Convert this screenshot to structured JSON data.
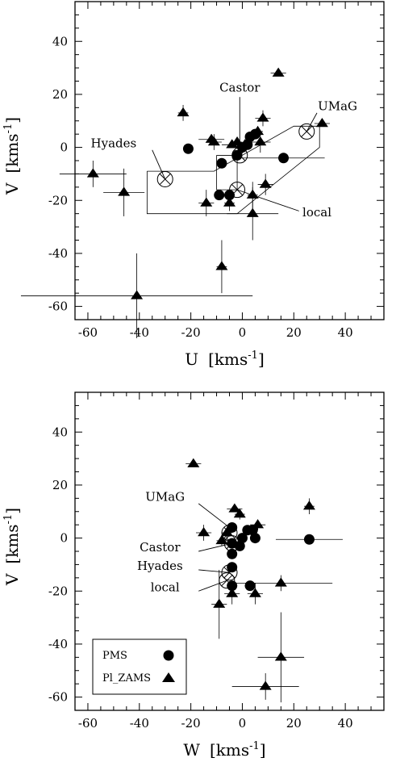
{
  "chart_data": [
    {
      "type": "scatter",
      "panel": "top",
      "xlabel": "U",
      "ylabel": "V",
      "unit": "[kms",
      "unit_exp": "-1",
      "unit_close": "]",
      "xlim": [
        -65,
        55
      ],
      "ylim": [
        -65,
        55
      ],
      "xticks": [
        -60,
        -40,
        -20,
        0,
        20,
        40
      ],
      "yticks": [
        -60,
        -40,
        -20,
        0,
        20,
        40
      ],
      "grid": false,
      "series": [
        {
          "marker": "circle",
          "points": [
            {
              "x": -21,
              "y": -0.5,
              "ex": 0,
              "ey": 0
            },
            {
              "x": -8,
              "y": -6,
              "ex": 0,
              "ey": 0
            },
            {
              "x": -9,
              "y": -18,
              "ex": 0,
              "ey": 0
            },
            {
              "x": -5,
              "y": -18,
              "ex": 0,
              "ey": 0
            },
            {
              "x": -2,
              "y": -3,
              "ex": 0,
              "ey": 0
            },
            {
              "x": 0,
              "y": 0,
              "ex": 0,
              "ey": 0
            },
            {
              "x": 2,
              "y": 1,
              "ex": 0,
              "ey": 0
            },
            {
              "x": 3,
              "y": 4,
              "ex": 0,
              "ey": 0
            },
            {
              "x": 5,
              "y": 5,
              "ex": 0,
              "ey": 0
            },
            {
              "x": 16,
              "y": -4,
              "ex": 16,
              "ey": 0
            }
          ]
        },
        {
          "marker": "triangle",
          "points": [
            {
              "x": -58,
              "y": -10,
              "ex": 13,
              "ey": 5
            },
            {
              "x": -46,
              "y": -17,
              "ex": 8,
              "ey": 9
            },
            {
              "x": -41,
              "y": -56,
              "ex": 45,
              "ey": 16
            },
            {
              "x": -23,
              "y": 13,
              "ex": 2,
              "ey": 3
            },
            {
              "x": -14,
              "y": -21,
              "ex": 3,
              "ey": 5
            },
            {
              "x": -12,
              "y": 3,
              "ex": 5,
              "ey": 2
            },
            {
              "x": -11,
              "y": 2,
              "ex": 3,
              "ey": 3
            },
            {
              "x": -8,
              "y": -45,
              "ex": 2,
              "ey": 10
            },
            {
              "x": -5,
              "y": -21,
              "ex": 2,
              "ey": 3
            },
            {
              "x": -4,
              "y": 1,
              "ex": 4,
              "ey": 1
            },
            {
              "x": -2,
              "y": 2,
              "ex": 2,
              "ey": 2
            },
            {
              "x": 1,
              "y": 1,
              "ex": 2,
              "ey": 2
            },
            {
              "x": 4,
              "y": -18,
              "ex": 2,
              "ey": 5
            },
            {
              "x": 4,
              "y": -25,
              "ex": 10,
              "ey": 10
            },
            {
              "x": 6,
              "y": 6,
              "ex": 2,
              "ey": 2
            },
            {
              "x": 7,
              "y": 2,
              "ex": 4,
              "ey": 4
            },
            {
              "x": 8,
              "y": 11,
              "ex": 3,
              "ey": 3
            },
            {
              "x": 9,
              "y": -14,
              "ex": 3,
              "ey": 4
            },
            {
              "x": 14,
              "y": 28,
              "ex": 3,
              "ey": 1
            },
            {
              "x": 31,
              "y": 9,
              "ex": 3,
              "ey": 1
            }
          ]
        },
        {
          "marker": "circled-x",
          "points": [
            {
              "x": -30,
              "y": -12
            },
            {
              "x": 25,
              "y": 6
            },
            {
              "x": -2,
              "y": -16
            },
            {
              "x": -1,
              "y": -3
            }
          ]
        }
      ],
      "annotations": [
        {
          "text": "Hyades",
          "x": -50,
          "y": 0
        },
        {
          "text": "Castor",
          "x": -1,
          "y": 21
        },
        {
          "text": "UMaG",
          "x": 37,
          "y": 14
        },
        {
          "text": "local",
          "x": 29,
          "y": -26
        }
      ],
      "leaders": [
        [
          [
            -35,
            -1
          ],
          [
            -30,
            -12
          ]
        ],
        [
          [
            -1,
            19
          ],
          [
            -1,
            -3
          ]
        ],
        [
          [
            29,
            13
          ],
          [
            25,
            6
          ]
        ],
        [
          [
            22,
            -24
          ],
          [
            -2,
            -16
          ]
        ]
      ],
      "outlines": [
        [
          [
            -37,
            -9
          ],
          [
            -37,
            -25
          ],
          [
            -2,
            -25
          ],
          [
            30,
            0
          ],
          [
            30,
            8
          ],
          [
            20,
            8
          ],
          [
            -11,
            -9
          ],
          [
            -37,
            -9
          ]
        ],
        [
          [
            -10,
            -3
          ],
          [
            -2,
            -3
          ],
          [
            -2,
            -16
          ],
          [
            -10,
            -16
          ],
          [
            -10,
            -3
          ]
        ]
      ]
    },
    {
      "type": "scatter",
      "panel": "bottom",
      "xlabel": "W",
      "ylabel": "V",
      "unit": "[kms",
      "unit_exp": "-1",
      "unit_close": "]",
      "xlim": [
        -65,
        55
      ],
      "ylim": [
        -65,
        55
      ],
      "xticks": [
        -60,
        -40,
        -20,
        0,
        20,
        40
      ],
      "yticks": [
        -60,
        -40,
        -20,
        0,
        20,
        40
      ],
      "grid": false,
      "series": [
        {
          "marker": "circle",
          "points": [
            {
              "x": -4,
              "y": 4,
              "ex": 0,
              "ey": 0
            },
            {
              "x": -4,
              "y": -2,
              "ex": 0,
              "ey": 0
            },
            {
              "x": -4,
              "y": -6,
              "ex": 0,
              "ey": 0
            },
            {
              "x": -4,
              "y": -11,
              "ex": 0,
              "ey": 0
            },
            {
              "x": -4,
              "y": -18,
              "ex": 0,
              "ey": 0
            },
            {
              "x": -1,
              "y": -3,
              "ex": 0,
              "ey": 0
            },
            {
              "x": 0,
              "y": 0,
              "ex": 0,
              "ey": 0
            },
            {
              "x": 2,
              "y": 3,
              "ex": 0,
              "ey": 0
            },
            {
              "x": 4,
              "y": 3,
              "ex": 0,
              "ey": 0
            },
            {
              "x": 5,
              "y": 0,
              "ex": 0,
              "ey": 0
            },
            {
              "x": 3,
              "y": -18,
              "ex": 0,
              "ey": 0
            },
            {
              "x": 26,
              "y": -0.5,
              "ex": 13,
              "ey": 0
            }
          ]
        },
        {
          "marker": "triangle",
          "points": [
            {
              "x": -19,
              "y": 28,
              "ex": 3,
              "ey": 1
            },
            {
              "x": -15,
              "y": 2,
              "ex": 3,
              "ey": 3
            },
            {
              "x": -9,
              "y": -25,
              "ex": 3,
              "ey": 13
            },
            {
              "x": -8,
              "y": -1,
              "ex": 2,
              "ey": 2
            },
            {
              "x": -6,
              "y": 2,
              "ex": 2,
              "ey": 2
            },
            {
              "x": -4,
              "y": -21,
              "ex": 3,
              "ey": 4
            },
            {
              "x": -3,
              "y": 11,
              "ex": 3,
              "ey": 1
            },
            {
              "x": -1,
              "y": 9,
              "ex": 2,
              "ey": 2
            },
            {
              "x": 5,
              "y": -21,
              "ex": 3,
              "ey": 4
            },
            {
              "x": 6,
              "y": 5,
              "ex": 3,
              "ey": 2
            },
            {
              "x": 15,
              "y": -17,
              "ex": 20,
              "ey": 3
            },
            {
              "x": 15,
              "y": -45,
              "ex": 9,
              "ey": 17
            },
            {
              "x": 9,
              "y": -56,
              "ex": 13,
              "ey": 5
            },
            {
              "x": 26,
              "y": 12,
              "ex": 2,
              "ey": 3
            }
          ]
        },
        {
          "marker": "circled-x",
          "points": [
            {
              "x": -5,
              "y": 2
            },
            {
              "x": -4,
              "y": -2
            },
            {
              "x": -5,
              "y": -13
            },
            {
              "x": -6,
              "y": -16
            }
          ]
        }
      ],
      "annotations": [
        {
          "text": "UMaG",
          "x": -30,
          "y": 14
        },
        {
          "text": "Castor",
          "x": -32,
          "y": -5
        },
        {
          "text": "Hyades",
          "x": -32,
          "y": -12
        },
        {
          "text": "local",
          "x": -30,
          "y": -20
        }
      ],
      "leaders": [
        [
          [
            -17,
            13
          ],
          [
            -5,
            4
          ]
        ],
        [
          [
            -17,
            -5
          ],
          [
            -4,
            -2
          ]
        ],
        [
          [
            -17,
            -12
          ],
          [
            -5,
            -13
          ]
        ],
        [
          [
            -17,
            -20
          ],
          [
            -6,
            -16
          ]
        ]
      ],
      "legend": {
        "placement": "bottom-left",
        "entries": [
          {
            "label": "PMS",
            "marker": "circle"
          },
          {
            "label": "Pl_ZAMS",
            "marker": "triangle"
          }
        ]
      }
    }
  ]
}
